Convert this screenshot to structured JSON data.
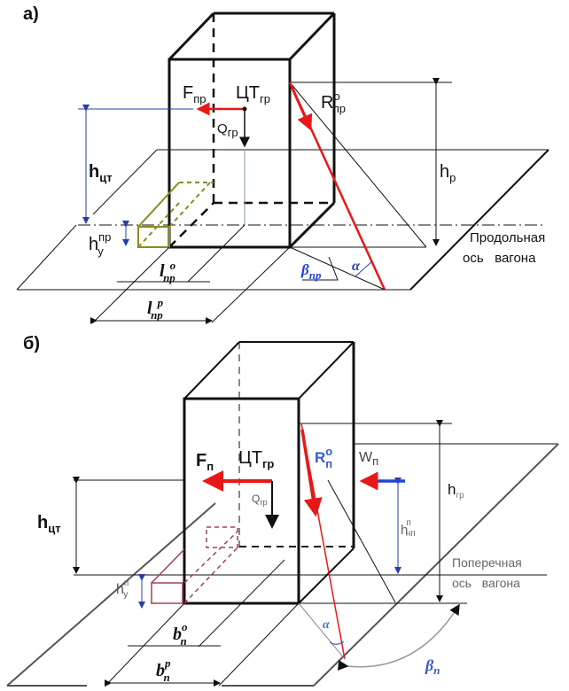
{
  "panel_a": {
    "label": "а)",
    "F": {
      "main": "F",
      "sub": "пр"
    },
    "CT": {
      "main": "ЦТ",
      "sub": "гр"
    },
    "Q": {
      "main": "Q",
      "sub": "гр"
    },
    "R": {
      "main": "R",
      "sub": "пр",
      "sup": "о"
    },
    "h_p": {
      "main": "h",
      "sub": "р"
    },
    "h_ct": {
      "main": "h",
      "sub": "цт"
    },
    "h_y": {
      "main": "h",
      "sub": "у",
      "sup": "пр"
    },
    "l_o": {
      "main": "l",
      "sub": "пр",
      "sup": "о"
    },
    "l_p": {
      "main": "l",
      "sub": "пр",
      "sup": "р"
    },
    "beta": {
      "main": "β",
      "sub": "пр"
    },
    "alpha": "α",
    "axis_line1": "Продольная",
    "axis_line2": "ось   вагона"
  },
  "panel_b": {
    "label": "б)",
    "F": {
      "main": "F",
      "sub": "п"
    },
    "CT": {
      "main": "ЦТ",
      "sub": "гр"
    },
    "Q": {
      "main": "Q",
      "sub": "гр"
    },
    "R": {
      "main": "R",
      "sub": "п",
      "sup": "о"
    },
    "W": {
      "main": "W",
      "sub": "п"
    },
    "h_p": {
      "main": "h",
      "sub": "гр"
    },
    "h_np": {
      "main": "h",
      "sub": "нп",
      "sup": "п"
    },
    "h_ct": {
      "main": "h",
      "sub": "цт"
    },
    "h_y": {
      "main": "h",
      "sub": "у",
      "sup": "п"
    },
    "b_o": {
      "main": "b",
      "sub": "п",
      "sup": "о"
    },
    "b_p": {
      "main": "b",
      "sub": "п",
      "sup": "р"
    },
    "beta": {
      "main": "β",
      "sub": "п"
    },
    "alpha": "α",
    "axis_line1": "Поперечная",
    "axis_line2": "ось   вагона"
  },
  "colors": {
    "force": "#e81818",
    "dimension": "#2a3ea8",
    "wind": "#1f45d6",
    "block_a": "#8a8a1e",
    "block_b": "#a0405a"
  }
}
